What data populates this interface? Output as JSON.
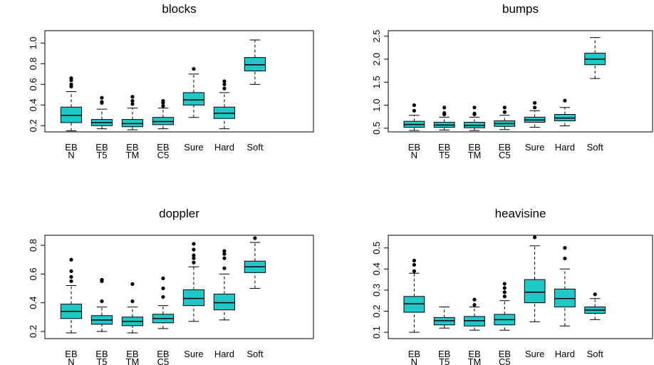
{
  "chart_data": [
    {
      "type": "box",
      "title": "blocks",
      "color": "#20c8c8",
      "categories": [
        [
          "EB",
          "N"
        ],
        [
          "EB",
          "T5"
        ],
        [
          "EB",
          "TM"
        ],
        [
          "EB",
          "C5"
        ],
        [
          "Sure"
        ],
        [
          "Hard"
        ],
        [
          "Soft"
        ]
      ],
      "boxes": [
        {
          "low": 0.15,
          "q1": 0.23,
          "median": 0.3,
          "q3": 0.38,
          "high": 0.53,
          "outliers": [
            0.58,
            0.6,
            0.64,
            0.66
          ]
        },
        {
          "low": 0.17,
          "q1": 0.2,
          "median": 0.23,
          "q3": 0.26,
          "high": 0.36,
          "outliers": [
            0.42,
            0.43,
            0.47
          ]
        },
        {
          "low": 0.16,
          "q1": 0.19,
          "median": 0.22,
          "q3": 0.26,
          "high": 0.37,
          "outliers": [
            0.41,
            0.44,
            0.48
          ]
        },
        {
          "low": 0.17,
          "q1": 0.21,
          "median": 0.24,
          "q3": 0.28,
          "high": 0.37,
          "outliers": [
            0.39,
            0.42,
            0.44
          ]
        },
        {
          "low": 0.28,
          "q1": 0.4,
          "median": 0.45,
          "q3": 0.52,
          "high": 0.7,
          "outliers": [
            0.75
          ]
        },
        {
          "low": 0.17,
          "q1": 0.27,
          "median": 0.32,
          "q3": 0.38,
          "high": 0.52,
          "outliers": [
            0.56,
            0.6,
            0.63
          ]
        },
        {
          "low": 0.6,
          "q1": 0.73,
          "median": 0.79,
          "q3": 0.86,
          "high": 1.03,
          "outliers": []
        }
      ],
      "ylim": [
        0.14,
        1.12
      ],
      "yticks": [
        0.2,
        0.4,
        0.6,
        0.8,
        {
          "value": 1,
          "label": "1.0"
        }
      ]
    },
    {
      "type": "box",
      "title": "bumps",
      "color": "#20c8c8",
      "categories": [
        [
          "EB",
          "N"
        ],
        [
          "EB",
          "T5"
        ],
        [
          "EB",
          "TM"
        ],
        [
          "EB",
          "C5"
        ],
        [
          "Sure"
        ],
        [
          "Hard"
        ],
        [
          "Soft"
        ]
      ],
      "boxes": [
        {
          "low": 0.45,
          "q1": 0.52,
          "median": 0.58,
          "q3": 0.65,
          "high": 0.78,
          "outliers": [
            0.88,
            1.0
          ]
        },
        {
          "low": 0.46,
          "q1": 0.52,
          "median": 0.57,
          "q3": 0.63,
          "high": 0.74,
          "outliers": [
            0.8,
            0.83,
            0.95
          ]
        },
        {
          "low": 0.45,
          "q1": 0.51,
          "median": 0.56,
          "q3": 0.63,
          "high": 0.74,
          "outliers": [
            0.8,
            0.82,
            0.95
          ]
        },
        {
          "low": 0.47,
          "q1": 0.54,
          "median": 0.6,
          "q3": 0.66,
          "high": 0.78,
          "outliers": [
            0.85,
            0.95
          ]
        },
        {
          "low": 0.52,
          "q1": 0.63,
          "median": 0.68,
          "q3": 0.74,
          "high": 0.88,
          "outliers": [
            0.95,
            1.05
          ]
        },
        {
          "low": 0.55,
          "q1": 0.66,
          "median": 0.72,
          "q3": 0.8,
          "high": 0.95,
          "outliers": [
            1.1
          ]
        },
        {
          "low": 1.58,
          "q1": 1.88,
          "median": 2.0,
          "q3": 2.13,
          "high": 2.47,
          "outliers": []
        }
      ],
      "ylim": [
        0.42,
        2.62
      ],
      "yticks": [
        0.5,
        {
          "value": 1,
          "label": "1.0"
        },
        1.5,
        {
          "value": 2,
          "label": "2.0"
        },
        2.5
      ]
    },
    {
      "type": "box",
      "title": "doppler",
      "color": "#20c8c8",
      "categories": [
        [
          "EB",
          "N"
        ],
        [
          "EB",
          "T5"
        ],
        [
          "EB",
          "TM"
        ],
        [
          "EB",
          "C5"
        ],
        [
          "Sure"
        ],
        [
          "Hard"
        ],
        [
          "Soft"
        ]
      ],
      "boxes": [
        {
          "low": 0.19,
          "q1": 0.29,
          "median": 0.34,
          "q3": 0.39,
          "high": 0.52,
          "outliers": [
            0.55,
            0.58,
            0.62,
            0.7
          ]
        },
        {
          "low": 0.2,
          "q1": 0.25,
          "median": 0.28,
          "q3": 0.31,
          "high": 0.37,
          "outliers": [
            0.41,
            0.55,
            0.56
          ]
        },
        {
          "low": 0.19,
          "q1": 0.24,
          "median": 0.27,
          "q3": 0.3,
          "high": 0.37,
          "outliers": [
            0.41,
            0.53
          ]
        },
        {
          "low": 0.22,
          "q1": 0.26,
          "median": 0.29,
          "q3": 0.32,
          "high": 0.38,
          "outliers": [
            0.44,
            0.5,
            0.57
          ]
        },
        {
          "low": 0.27,
          "q1": 0.38,
          "median": 0.43,
          "q3": 0.49,
          "high": 0.65,
          "outliers": [
            0.68,
            0.71,
            0.73,
            0.77,
            0.81
          ]
        },
        {
          "low": 0.28,
          "q1": 0.35,
          "median": 0.4,
          "q3": 0.46,
          "high": 0.6,
          "outliers": [
            0.64,
            0.71,
            0.74,
            0.76
          ]
        },
        {
          "low": 0.5,
          "q1": 0.61,
          "median": 0.65,
          "q3": 0.69,
          "high": 0.82,
          "outliers": [
            0.85
          ]
        }
      ],
      "ylim": [
        0.15,
        0.87
      ],
      "yticks": [
        0.2,
        0.4,
        0.6,
        0.8
      ]
    },
    {
      "type": "box",
      "title": "heavisine",
      "color": "#20c8c8",
      "categories": [
        [
          "EB",
          "N"
        ],
        [
          "EB",
          "T5"
        ],
        [
          "EB",
          "TM"
        ],
        [
          "EB",
          "C5"
        ],
        [
          "Sure"
        ],
        [
          "Hard"
        ],
        [
          "Soft"
        ]
      ],
      "boxes": [
        {
          "low": 0.1,
          "q1": 0.195,
          "median": 0.235,
          "q3": 0.27,
          "high": 0.38,
          "outliers": [
            0.39,
            0.42,
            0.44
          ]
        },
        {
          "low": 0.12,
          "q1": 0.135,
          "median": 0.155,
          "q3": 0.17,
          "high": 0.22,
          "outliers": []
        },
        {
          "low": 0.11,
          "q1": 0.13,
          "median": 0.155,
          "q3": 0.175,
          "high": 0.22,
          "outliers": [
            0.23,
            0.255
          ]
        },
        {
          "low": 0.11,
          "q1": 0.135,
          "median": 0.16,
          "q3": 0.185,
          "high": 0.25,
          "outliers": [
            0.27,
            0.29,
            0.31,
            0.33
          ]
        },
        {
          "low": 0.15,
          "q1": 0.24,
          "median": 0.29,
          "q3": 0.35,
          "high": 0.51,
          "outliers": [
            0.55
          ]
        },
        {
          "low": 0.13,
          "q1": 0.22,
          "median": 0.26,
          "q3": 0.305,
          "high": 0.4,
          "outliers": [
            0.45,
            0.5
          ]
        },
        {
          "low": 0.16,
          "q1": 0.19,
          "median": 0.205,
          "q3": 0.22,
          "high": 0.26,
          "outliers": [
            0.28
          ]
        }
      ],
      "ylim": [
        0.07,
        0.56
      ],
      "yticks": [
        0.1,
        0.2,
        0.3,
        0.4,
        0.5
      ]
    }
  ]
}
